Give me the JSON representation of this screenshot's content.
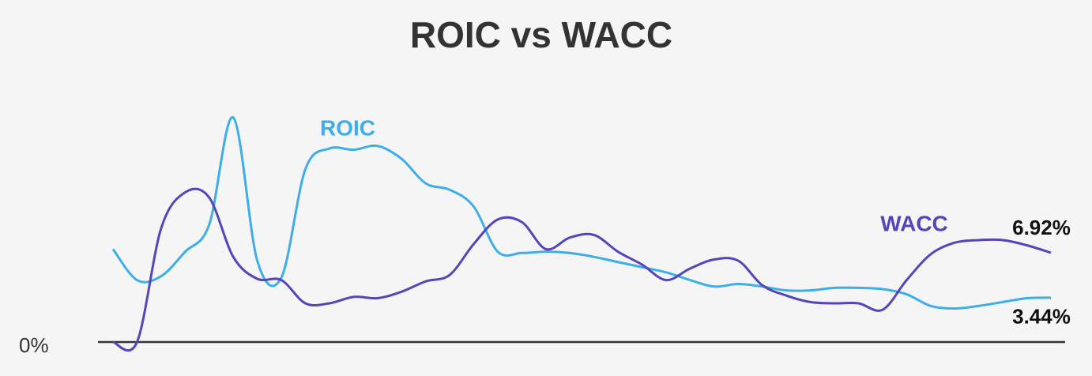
{
  "chart_data": {
    "type": "line",
    "title": "ROIC vs WACC",
    "categories": [
      null,
      null,
      null,
      null,
      null,
      null,
      null,
      null,
      null,
      null,
      null,
      null,
      null,
      null,
      null,
      null,
      null,
      null,
      null,
      null,
      null,
      null,
      null,
      null,
      null,
      null,
      null,
      null,
      null,
      null,
      null,
      null,
      null,
      null,
      null,
      null,
      null,
      null,
      null,
      null
    ],
    "ylim": [
      0,
      18
    ],
    "yticks": [
      {
        "value": 0,
        "label": "0%"
      }
    ],
    "series": [
      {
        "name": "ROIC",
        "color": "#3daee9",
        "values": [
          7.2,
          4.8,
          5.1,
          7.0,
          9.1,
          17.4,
          6.3,
          5.0,
          13.4,
          15.0,
          14.9,
          15.2,
          14.2,
          12.3,
          11.8,
          10.5,
          7.0,
          6.9,
          7.0,
          6.9,
          6.6,
          6.2,
          5.8,
          5.4,
          4.8,
          4.3,
          4.5,
          4.3,
          4.0,
          4.0,
          4.2,
          4.2,
          4.1,
          3.7,
          2.8,
          2.6,
          2.8,
          3.1,
          3.4,
          3.44
        ],
        "value_labels": [
          null,
          null,
          null,
          null,
          null,
          null,
          null,
          null,
          null,
          null,
          null,
          null,
          null,
          null,
          null,
          null,
          null,
          null,
          null,
          null,
          null,
          null,
          null,
          null,
          null,
          null,
          null,
          null,
          null,
          null,
          null,
          null,
          null,
          null,
          null,
          null,
          null,
          null,
          null,
          "3.44%"
        ]
      },
      {
        "name": "WACC",
        "color": "#5546b8",
        "values": [
          0,
          0,
          8.8,
          11.6,
          11.2,
          6.6,
          4.9,
          4.8,
          3.0,
          3.0,
          3.5,
          3.4,
          3.9,
          4.7,
          5.2,
          7.6,
          9.5,
          9.3,
          7.2,
          8.1,
          8.3,
          7.0,
          6.0,
          4.8,
          5.7,
          6.4,
          6.3,
          4.4,
          3.6,
          3.1,
          3.0,
          3.0,
          2.5,
          4.8,
          6.8,
          7.7,
          7.9,
          7.9,
          7.5,
          6.92
        ],
        "value_labels": [
          null,
          null,
          null,
          null,
          null,
          null,
          null,
          null,
          null,
          null,
          null,
          null,
          null,
          null,
          null,
          null,
          null,
          null,
          null,
          null,
          null,
          null,
          null,
          null,
          null,
          null,
          null,
          null,
          null,
          null,
          null,
          null,
          null,
          null,
          null,
          null,
          null,
          null,
          null,
          "6.92%"
        ]
      }
    ]
  }
}
